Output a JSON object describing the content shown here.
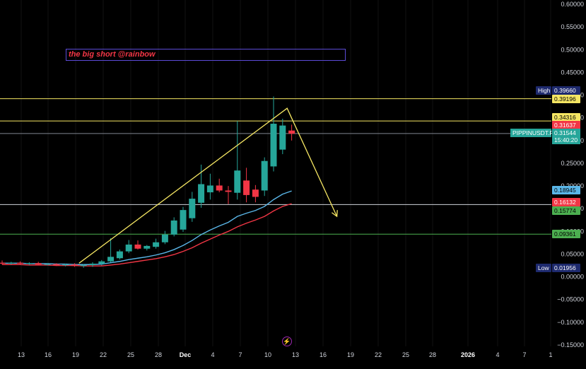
{
  "annotation": {
    "text": "the big short @rainbow"
  },
  "price_tags": {
    "high": {
      "label": "High",
      "value": "0.39660",
      "bg": "#1e2a6e",
      "fg": "#ffffff"
    },
    "low": {
      "label": "Low",
      "value": "0.01956",
      "bg": "#1e2a6e",
      "fg": "#ffffff"
    },
    "symbol": {
      "label": "PIPPINUSDT.P",
      "value": "0.31544",
      "countdown": "15:40:20",
      "bg": "#26a69a",
      "fg": "#ffffff"
    },
    "levels": [
      {
        "value": "0.39196",
        "bg": "#f5e663",
        "fg": "#000000"
      },
      {
        "value": "0.34316",
        "bg": "#f5e663",
        "fg": "#000000"
      },
      {
        "value": "0.31637",
        "bg": "#f23645",
        "fg": "#ffffff"
      },
      {
        "value": "0.18945",
        "bg": "#5ab6e8",
        "fg": "#000000"
      },
      {
        "value": "0.16132",
        "bg": "#f23645",
        "fg": "#ffffff"
      },
      {
        "value": "0.15774",
        "bg": "#4caf50",
        "fg": "#000000"
      },
      {
        "value": "0.09361",
        "bg": "#4caf50",
        "fg": "#000000"
      }
    ]
  },
  "chart_data": {
    "type": "candlestick",
    "y_axis": {
      "ylim": [
        -0.15,
        0.6
      ],
      "ticks": [
        "0.60000",
        "0.55000",
        "0.50000",
        "0.45000",
        "0.40000",
        "0.35000",
        "0.30000",
        "0.25000",
        "0.20000",
        "0.15000",
        "0.10000",
        "0.05000",
        "0.00000",
        "−0.05000",
        "−0.10000",
        "−0.15000"
      ]
    },
    "x_axis": {
      "ticks": [
        "13",
        "16",
        "19",
        "22",
        "25",
        "28",
        "Dec",
        "4",
        "7",
        "10",
        "13",
        "16",
        "19",
        "22",
        "25",
        "28",
        "2026",
        "4",
        "7",
        "1"
      ]
    },
    "horizontal_lines": [
      {
        "price": 0.392,
        "color": "#f5e663"
      },
      {
        "price": 0.343,
        "color": "#f5e663"
      },
      {
        "price": 0.3155,
        "color": "#7f8590"
      },
      {
        "price": 0.159,
        "color": "#d1d4dc"
      },
      {
        "price": 0.094,
        "color": "#4caf50"
      }
    ],
    "candles": [
      {
        "o": 0.031,
        "h": 0.036,
        "l": 0.027,
        "c": 0.029
      },
      {
        "o": 0.03,
        "h": 0.033,
        "l": 0.027,
        "c": 0.031
      },
      {
        "o": 0.031,
        "h": 0.034,
        "l": 0.028,
        "c": 0.029
      },
      {
        "o": 0.029,
        "h": 0.032,
        "l": 0.026,
        "c": 0.03
      },
      {
        "o": 0.03,
        "h": 0.033,
        "l": 0.026,
        "c": 0.027
      },
      {
        "o": 0.027,
        "h": 0.03,
        "l": 0.025,
        "c": 0.028
      },
      {
        "o": 0.028,
        "h": 0.03,
        "l": 0.024,
        "c": 0.026
      },
      {
        "o": 0.026,
        "h": 0.029,
        "l": 0.023,
        "c": 0.027
      },
      {
        "o": 0.027,
        "h": 0.03,
        "l": 0.022,
        "c": 0.024
      },
      {
        "o": 0.024,
        "h": 0.028,
        "l": 0.02,
        "c": 0.026
      },
      {
        "o": 0.026,
        "h": 0.032,
        "l": 0.022,
        "c": 0.029
      },
      {
        "o": 0.029,
        "h": 0.037,
        "l": 0.025,
        "c": 0.034
      },
      {
        "o": 0.034,
        "h": 0.085,
        "l": 0.032,
        "c": 0.044
      },
      {
        "o": 0.041,
        "h": 0.06,
        "l": 0.038,
        "c": 0.056
      },
      {
        "o": 0.056,
        "h": 0.081,
        "l": 0.052,
        "c": 0.071
      },
      {
        "o": 0.071,
        "h": 0.08,
        "l": 0.06,
        "c": 0.062
      },
      {
        "o": 0.062,
        "h": 0.07,
        "l": 0.058,
        "c": 0.068
      },
      {
        "o": 0.066,
        "h": 0.084,
        "l": 0.062,
        "c": 0.076
      },
      {
        "o": 0.076,
        "h": 0.101,
        "l": 0.072,
        "c": 0.093
      },
      {
        "o": 0.093,
        "h": 0.131,
        "l": 0.089,
        "c": 0.124
      },
      {
        "o": 0.104,
        "h": 0.154,
        "l": 0.099,
        "c": 0.147
      },
      {
        "o": 0.129,
        "h": 0.187,
        "l": 0.121,
        "c": 0.172
      },
      {
        "o": 0.163,
        "h": 0.247,
        "l": 0.152,
        "c": 0.204
      },
      {
        "o": 0.186,
        "h": 0.227,
        "l": 0.17,
        "c": 0.201
      },
      {
        "o": 0.201,
        "h": 0.216,
        "l": 0.186,
        "c": 0.19
      },
      {
        "o": 0.19,
        "h": 0.2,
        "l": 0.16,
        "c": 0.187
      },
      {
        "o": 0.185,
        "h": 0.343,
        "l": 0.17,
        "c": 0.234
      },
      {
        "o": 0.212,
        "h": 0.24,
        "l": 0.164,
        "c": 0.18
      },
      {
        "o": 0.192,
        "h": 0.202,
        "l": 0.164,
        "c": 0.176
      },
      {
        "o": 0.19,
        "h": 0.263,
        "l": 0.178,
        "c": 0.255
      },
      {
        "o": 0.243,
        "h": 0.397,
        "l": 0.232,
        "c": 0.337
      },
      {
        "o": 0.28,
        "h": 0.348,
        "l": 0.27,
        "c": 0.333
      },
      {
        "o": 0.322,
        "h": 0.335,
        "l": 0.3,
        "c": 0.315
      }
    ],
    "series": [
      {
        "name": "",
        "color": "#5ab6e8",
        "values": [
          0.03,
          0.03,
          0.03,
          0.029,
          0.029,
          0.029,
          0.028,
          0.028,
          0.027,
          0.027,
          0.027,
          0.028,
          0.031,
          0.034,
          0.038,
          0.041,
          0.044,
          0.048,
          0.053,
          0.06,
          0.069,
          0.08,
          0.093,
          0.103,
          0.112,
          0.12,
          0.133,
          0.14,
          0.146,
          0.155,
          0.17,
          0.182,
          0.189
        ]
      },
      {
        "name": "",
        "color": "#f23645",
        "values": [
          0.027,
          0.027,
          0.027,
          0.026,
          0.026,
          0.026,
          0.025,
          0.025,
          0.025,
          0.024,
          0.024,
          0.024,
          0.026,
          0.028,
          0.031,
          0.034,
          0.037,
          0.04,
          0.044,
          0.049,
          0.056,
          0.064,
          0.074,
          0.083,
          0.092,
          0.1,
          0.11,
          0.118,
          0.125,
          0.133,
          0.145,
          0.155,
          0.161
        ]
      }
    ],
    "projection": [
      {
        "x_idx": 8.5,
        "y": 0.03
      },
      {
        "x_idx": 31.5,
        "y": 0.371
      },
      {
        "x_idx": 37,
        "y": 0.133
      }
    ]
  }
}
